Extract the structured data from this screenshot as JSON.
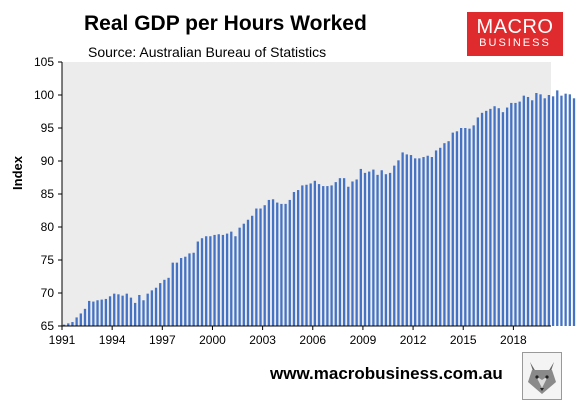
{
  "header": {
    "title": "Real GDP per Hours Worked",
    "subtitle": "Source: Australian Bureau of Statistics"
  },
  "logo": {
    "line1": "MACRO",
    "line2": "BUSINESS",
    "color": "#e02b2e"
  },
  "footer": {
    "website": "www.macrobusiness.com.au",
    "mascot_icon": "fox-mascot-icon"
  },
  "chart_data": {
    "type": "bar",
    "ylabel": "Index",
    "xlabel": "",
    "ylim": [
      65,
      105
    ],
    "yticks": [
      65,
      70,
      75,
      80,
      85,
      90,
      95,
      100,
      105
    ],
    "xlim": [
      1991.0,
      2020.25
    ],
    "xticks": [
      1991,
      1994,
      1997,
      2000,
      2003,
      2006,
      2009,
      2012,
      2015,
      2018
    ],
    "grid": false,
    "legend": "none",
    "bar_color": "#4472c4",
    "background_color": "#ececec",
    "frequency": "quarterly",
    "x_start": "1991 Q1",
    "values": [
      65.2,
      65.4,
      65.6,
      66.3,
      66.9,
      67.6,
      68.8,
      68.7,
      68.9,
      69.0,
      69.1,
      69.5,
      69.9,
      69.8,
      69.6,
      69.9,
      69.3,
      68.5,
      69.7,
      68.9,
      69.9,
      70.4,
      70.8,
      71.5,
      72.0,
      72.3,
      74.6,
      74.6,
      75.3,
      75.5,
      76.0,
      76.1,
      77.8,
      78.3,
      78.6,
      78.6,
      78.8,
      78.9,
      78.8,
      79.0,
      79.3,
      78.6,
      79.9,
      80.5,
      81.1,
      81.7,
      82.8,
      82.8,
      83.3,
      84.1,
      84.2,
      83.7,
      83.5,
      83.5,
      84.1,
      85.3,
      85.6,
      86.3,
      86.4,
      86.6,
      87.0,
      86.5,
      86.2,
      86.2,
      86.3,
      86.8,
      87.4,
      87.4,
      86.1,
      86.9,
      87.2,
      88.8,
      88.2,
      88.4,
      88.7,
      87.9,
      88.6,
      88.0,
      88.2,
      89.3,
      90.1,
      91.3,
      91.0,
      90.9,
      90.4,
      90.4,
      90.6,
      90.8,
      90.6,
      91.6,
      92.0,
      92.7,
      93.0,
      94.3,
      94.5,
      95.0,
      95.0,
      94.9,
      95.4,
      96.6,
      97.3,
      97.6,
      97.9,
      98.3,
      98.0,
      97.4,
      98.1,
      98.8,
      98.8,
      99.0,
      99.9,
      99.7,
      99.2,
      100.3,
      100.1,
      99.5,
      100.0,
      99.8,
      100.7,
      99.9,
      100.2,
      100.1,
      99.5,
      100.2,
      100.0,
      100.3,
      100.8
    ]
  }
}
